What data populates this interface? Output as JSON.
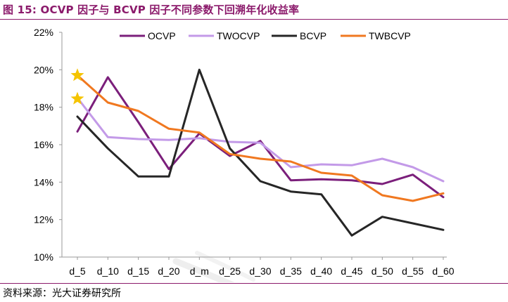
{
  "header": {
    "figure_label": "图 15:",
    "title_text": "OCVP 因子与 BCVP 因子不同参数下回溯年化收益率"
  },
  "footer": {
    "source": "资料来源：光大证券研究所"
  },
  "colors": {
    "OCVP": "#7b1f7b",
    "TWOCVP": "#c39ae8",
    "BCVP": "#262626",
    "TWBCVP": "#f07820",
    "star": "#f5c400",
    "title": "#8b1a6b"
  },
  "chart_data": {
    "type": "line",
    "title": "",
    "xlabel": "",
    "ylabel": "",
    "categories": [
      "d_5",
      "d_10",
      "d_15",
      "d_20",
      "d_m",
      "d_25",
      "d_30",
      "d_35",
      "d_40",
      "d_45",
      "d_50",
      "d_55",
      "d_60"
    ],
    "ylim": [
      10,
      22
    ],
    "yticks": [
      "10%",
      "12%",
      "14%",
      "16%",
      "18%",
      "20%",
      "22%"
    ],
    "yticks_values": [
      10,
      12,
      14,
      16,
      18,
      20,
      22
    ],
    "grid": false,
    "legend_position": "top",
    "series": [
      {
        "name": "OCVP",
        "values": [
          16.7,
          19.6,
          17.2,
          14.7,
          16.6,
          15.4,
          16.2,
          14.1,
          14.15,
          14.1,
          13.9,
          14.4,
          13.2
        ]
      },
      {
        "name": "TWOCVP",
        "values": [
          18.5,
          16.4,
          16.3,
          16.25,
          16.35,
          16.15,
          16.1,
          14.8,
          14.95,
          14.9,
          15.25,
          14.8,
          14.05
        ]
      },
      {
        "name": "BCVP",
        "values": [
          17.5,
          15.8,
          14.3,
          14.3,
          20.0,
          15.8,
          14.05,
          13.5,
          13.35,
          11.15,
          12.15,
          11.8,
          11.45
        ]
      },
      {
        "name": "TWBCVP",
        "values": [
          19.7,
          18.25,
          17.8,
          16.85,
          16.65,
          15.5,
          15.25,
          15.1,
          14.5,
          14.35,
          13.3,
          13.0,
          13.4
        ]
      }
    ],
    "markers": [
      {
        "shape": "star",
        "series": "TWBCVP",
        "category": "d_5",
        "value": 19.7
      },
      {
        "shape": "star",
        "series": "TWOCVP",
        "category": "d_5",
        "value": 18.45
      }
    ]
  }
}
